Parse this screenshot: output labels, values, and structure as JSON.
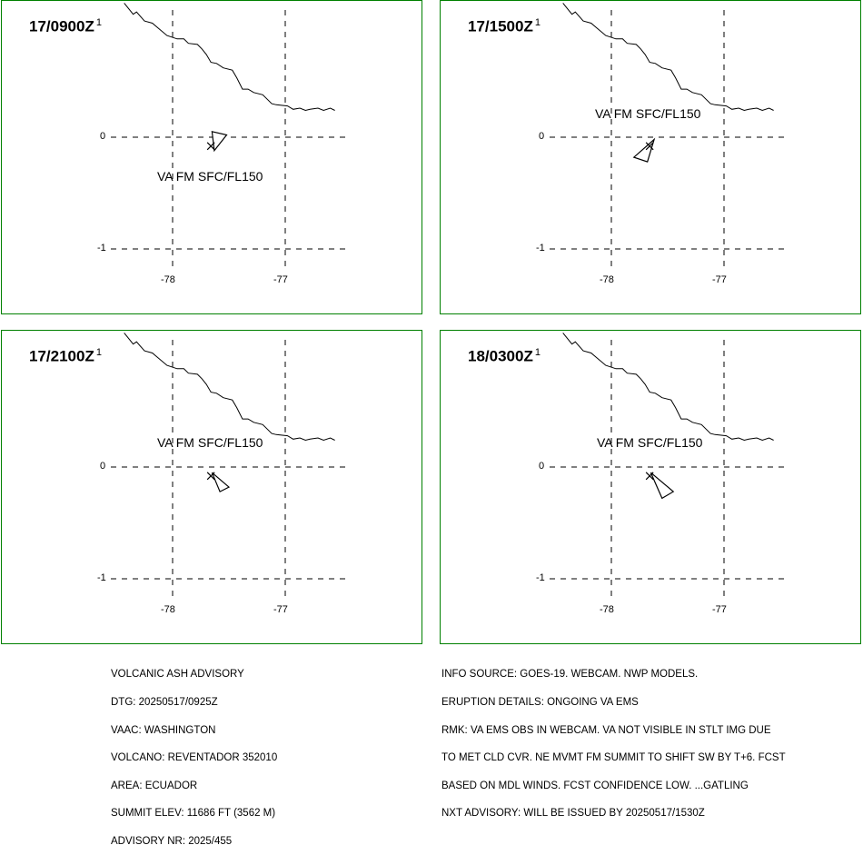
{
  "panels": [
    {
      "time": "17/0900Z",
      "sup": "1",
      "label": "VA FM SFC/FL150",
      "ash": [
        [
          -77.65,
          0.05
        ],
        [
          -77.52,
          0.02
        ],
        [
          -77.63,
          -0.12
        ]
      ],
      "ash_label_pos": "below"
    },
    {
      "time": "17/1500Z",
      "sup": "1",
      "label": "VA FM SFC/FL150",
      "ash": [
        [
          -77.62,
          -0.02
        ],
        [
          -77.8,
          -0.18
        ],
        [
          -77.68,
          -0.22
        ]
      ],
      "ash_label_pos": "above"
    },
    {
      "time": "17/2100Z",
      "sup": "1",
      "label": "VA FM SFC/FL150",
      "ash": [
        [
          -77.65,
          -0.05
        ],
        [
          -77.58,
          -0.22
        ],
        [
          -77.5,
          -0.18
        ]
      ],
      "ash_label_pos": "above"
    },
    {
      "time": "18/0300Z",
      "sup": "1",
      "label": "VA FM SFC/FL150",
      "ash": [
        [
          -77.65,
          -0.05
        ],
        [
          -77.55,
          -0.28
        ],
        [
          -77.45,
          -0.22
        ]
      ],
      "ash_label_pos": "above"
    }
  ],
  "axes": {
    "lon_ticks": [
      "-78",
      "-77"
    ],
    "lat_ticks": [
      "0",
      "-1"
    ]
  },
  "volcano": {
    "lon": -77.66,
    "lat": -0.08
  },
  "advisory_left": [
    "VOLCANIC ASH ADVISORY",
    "DTG: 20250517/0925Z",
    "VAAC: WASHINGTON",
    "VOLCANO: REVENTADOR 352010",
    "AREA: ECUADOR",
    "SUMMIT ELEV: 11686 FT (3562 M)",
    "ADVISORY NR: 2025/455"
  ],
  "advisory_right": [
    "INFO SOURCE: GOES-19. WEBCAM. NWP MODELS.",
    "ERUPTION DETAILS: ONGOING VA EMS",
    "RMK: VA EMS OBS IN WEBCAM. VA NOT VISIBLE IN STLT IMG DUE",
    "TO MET CLD CVR. NE MVMT FM SUMMIT TO SHIFT SW BY T+6. FCST",
    "BASED ON MDL WINDS. FCST CONFIDENCE LOW. ...GATLING",
    "NXT ADVISORY: WILL BE ISSUED BY 20250517/1530Z"
  ],
  "colors": {
    "border": "#008000",
    "line": "#000000"
  }
}
